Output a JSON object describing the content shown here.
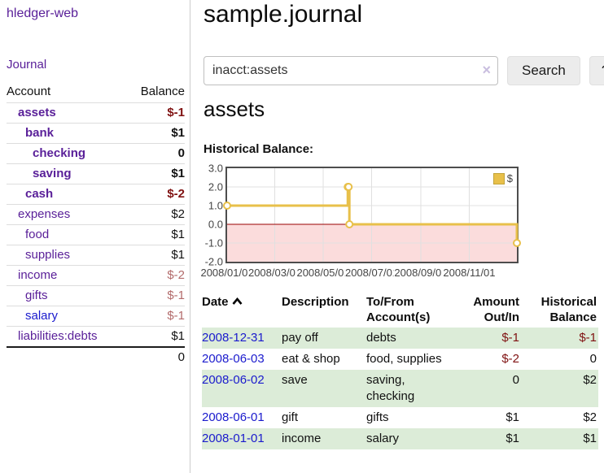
{
  "app": {
    "brand": "hledger-web"
  },
  "sidebar": {
    "journal_link": "Journal",
    "accounts": {
      "header": {
        "account": "Account",
        "balance": "Balance"
      },
      "rows": [
        {
          "name": "assets",
          "balance": "$-1",
          "depth": 0,
          "matched": true,
          "tone": "negative-strong"
        },
        {
          "name": "bank",
          "balance": "$1",
          "depth": 1,
          "matched": true,
          "tone": "normal"
        },
        {
          "name": "checking",
          "balance": "0",
          "depth": 2,
          "matched": true,
          "tone": "normal"
        },
        {
          "name": "saving",
          "balance": "$1",
          "depth": 2,
          "matched": true,
          "tone": "normal"
        },
        {
          "name": "cash",
          "balance": "$-2",
          "depth": 1,
          "matched": true,
          "tone": "negative-strong"
        },
        {
          "name": "expenses",
          "balance": "$2",
          "depth": 0,
          "matched": false,
          "tone": "normal"
        },
        {
          "name": "food",
          "balance": "$1",
          "depth": 1,
          "matched": false,
          "tone": "normal"
        },
        {
          "name": "supplies",
          "balance": "$1",
          "depth": 1,
          "matched": false,
          "tone": "normal"
        },
        {
          "name": "income",
          "balance": "$-2",
          "depth": 0,
          "matched": false,
          "tone": "negative-faded"
        },
        {
          "name": "gifts",
          "balance": "$-1",
          "depth": 1,
          "matched": false,
          "tone": "negative-faded"
        },
        {
          "name": "salary",
          "balance": "$-1",
          "depth": 1,
          "matched": false,
          "tone": "negative-faded",
          "link_style": "unvisited"
        },
        {
          "name": "liabilities:debts",
          "balance": "$1",
          "depth": 0,
          "matched": false,
          "tone": "normal"
        }
      ],
      "total": "0"
    }
  },
  "main": {
    "title": "sample.journal",
    "search": {
      "value": "inacct:assets",
      "clear": "×",
      "button": "Search",
      "help": "?"
    },
    "heading": "assets",
    "chart_title": "Historical Balance:"
  },
  "chart_data": {
    "type": "line",
    "step": true,
    "title": "Historical Balance:",
    "series": [
      {
        "name": "$",
        "points": [
          [
            "2008/01/01",
            1
          ],
          [
            "2008/06/01",
            2
          ],
          [
            "2008/06/02",
            2
          ],
          [
            "2008/06/03",
            0
          ],
          [
            "2008/12/31",
            -1
          ]
        ]
      }
    ],
    "x_ticks": [
      "2008/01/01",
      "2008/03/01",
      "2008/05/01",
      "2008/07/01",
      "2008/09/01",
      "2008/11/01"
    ],
    "y_ticks": [
      "3.0",
      "2.0",
      "1.0",
      "0.0",
      "-1.0",
      "-2.0"
    ],
    "ylim": [
      -2,
      3
    ],
    "x_range": [
      "2008/01/01",
      "2008/12/31"
    ],
    "grid": true,
    "negative_region_shaded": true,
    "legend": {
      "label": "$",
      "position": "top-right"
    }
  },
  "register": {
    "headers": [
      "Date",
      "Description",
      "To/From Account(s)",
      "Amount Out/In",
      "Historical Balance"
    ],
    "sort_icon": "chevron-up",
    "rows": [
      {
        "date": "2008-12-31",
        "description": "pay off",
        "accounts": "debts",
        "amount": "$-1",
        "balance": "$-1",
        "amount_negative": true,
        "balance_negative": true,
        "shaded": true
      },
      {
        "date": "2008-06-03",
        "description": "eat & shop",
        "accounts": "food, supplies",
        "amount": "$-2",
        "balance": "0",
        "amount_negative": true,
        "balance_negative": false,
        "shaded": false
      },
      {
        "date": "2008-06-02",
        "description": "save",
        "accounts": "saving, checking",
        "amount": "0",
        "balance": "$2",
        "amount_negative": false,
        "balance_negative": false,
        "shaded": true
      },
      {
        "date": "2008-06-01",
        "description": "gift",
        "accounts": "gifts",
        "amount": "$1",
        "balance": "$2",
        "amount_negative": false,
        "balance_negative": false,
        "shaded": false
      },
      {
        "date": "2008-01-01",
        "description": "income",
        "accounts": "salary",
        "amount": "$1",
        "balance": "$1",
        "amount_negative": false,
        "balance_negative": false,
        "shaded": true
      }
    ]
  },
  "colors": {
    "accent_purple": "#5a2099",
    "link_blue": "#1a1acd",
    "negative_strong": "#7f1111",
    "negative_faded": "#b36b6b",
    "row_green": "#dcecd8",
    "chart_line": "#e8c04a",
    "chart_negative_bg": "#fbdcdc",
    "chart_zero_line": "#990000",
    "chart_grid": "#e0e0e0",
    "axis_text": "#454545"
  }
}
